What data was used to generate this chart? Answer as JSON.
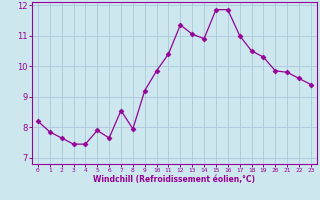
{
  "x": [
    0,
    1,
    2,
    3,
    4,
    5,
    6,
    7,
    8,
    9,
    10,
    11,
    12,
    13,
    14,
    15,
    16,
    17,
    18,
    19,
    20,
    21,
    22,
    23
  ],
  "y": [
    8.2,
    7.85,
    7.65,
    7.45,
    7.45,
    7.9,
    7.65,
    8.55,
    7.95,
    9.2,
    9.85,
    10.4,
    11.35,
    11.05,
    10.9,
    11.85,
    11.85,
    11.0,
    10.5,
    10.3,
    9.85,
    9.8,
    9.6,
    9.4
  ],
  "line_color": "#990099",
  "marker": "D",
  "marker_size": 2.5,
  "bg_color": "#cce8ee",
  "grid_color": "#aac8d8",
  "tick_color": "#990099",
  "label_color": "#990099",
  "xlabel": "Windchill (Refroidissement éolien,°C)",
  "ylim": [
    6.8,
    12.1
  ],
  "xlim": [
    -0.5,
    23.5
  ],
  "yticks": [
    7,
    8,
    9,
    10,
    11,
    12
  ],
  "xticks": [
    0,
    1,
    2,
    3,
    4,
    5,
    6,
    7,
    8,
    9,
    10,
    11,
    12,
    13,
    14,
    15,
    16,
    17,
    18,
    19,
    20,
    21,
    22,
    23
  ]
}
